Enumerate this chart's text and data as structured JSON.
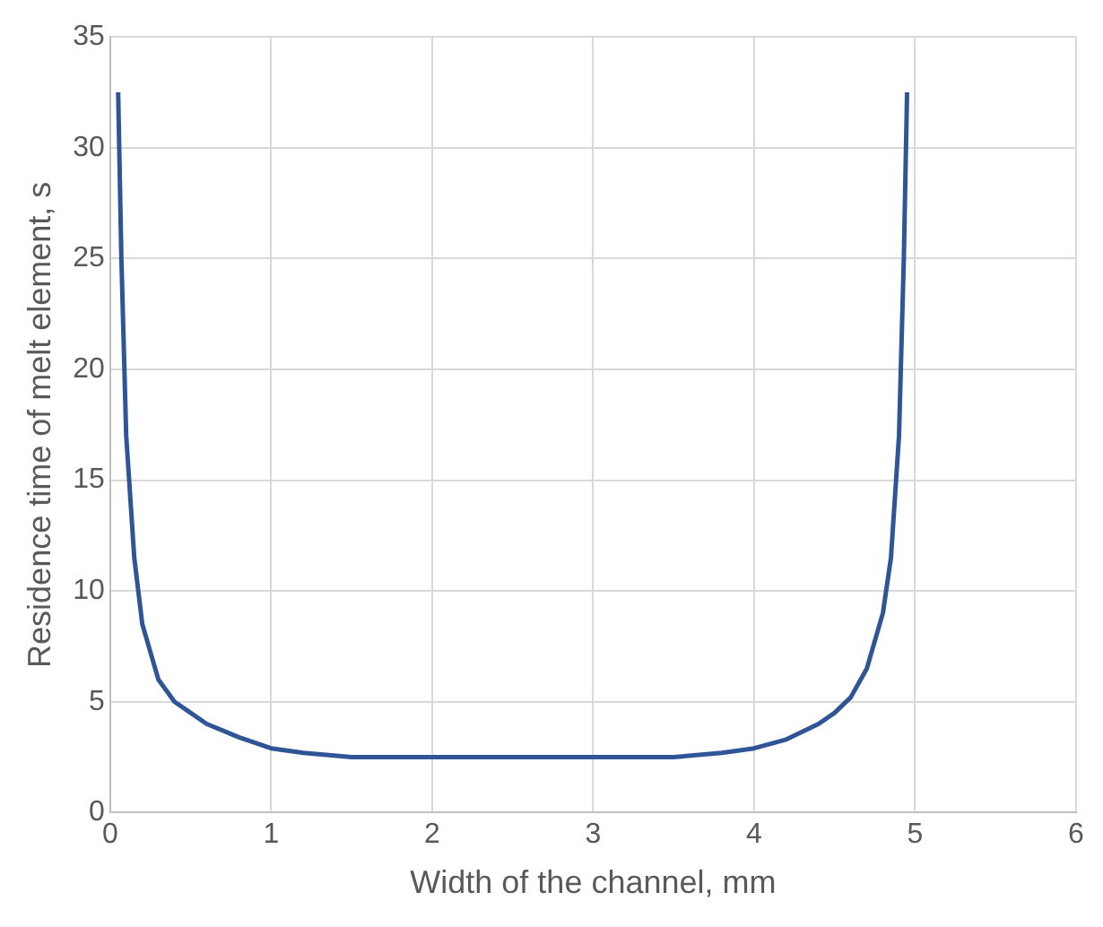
{
  "chart_data": {
    "type": "line",
    "xlabel": "Width of the channel, mm",
    "ylabel": "Residence time of melt element, s",
    "x": [
      0.05,
      0.07,
      0.1,
      0.15,
      0.2,
      0.3,
      0.4,
      0.5,
      0.6,
      0.8,
      1.0,
      1.2,
      1.5,
      2,
      2.5,
      3,
      3.5,
      3.8,
      4,
      4.2,
      4.4,
      4.5,
      4.6,
      4.7,
      4.8,
      4.85,
      4.9,
      4.93,
      4.95
    ],
    "series": [
      {
        "color": "#2f5597",
        "values": [
          32.5,
          25,
          17,
          11.5,
          8.5,
          6,
          5,
          4.5,
          4,
          3.4,
          2.9,
          2.7,
          2.5,
          2.5,
          2.5,
          2.5,
          2.5,
          2.7,
          2.9,
          3.3,
          4,
          4.5,
          5.2,
          6.5,
          9,
          11.5,
          17,
          25,
          32.5
        ]
      }
    ],
    "xlim": [
      0,
      6
    ],
    "xticks": [
      0,
      1,
      2,
      3,
      4,
      5,
      6
    ],
    "ylim": [
      0,
      35
    ],
    "yticks": [
      0,
      5,
      10,
      15,
      20,
      25,
      30,
      35
    ],
    "grid": true,
    "legend": false,
    "marker": "none",
    "line_style": "solid"
  }
}
